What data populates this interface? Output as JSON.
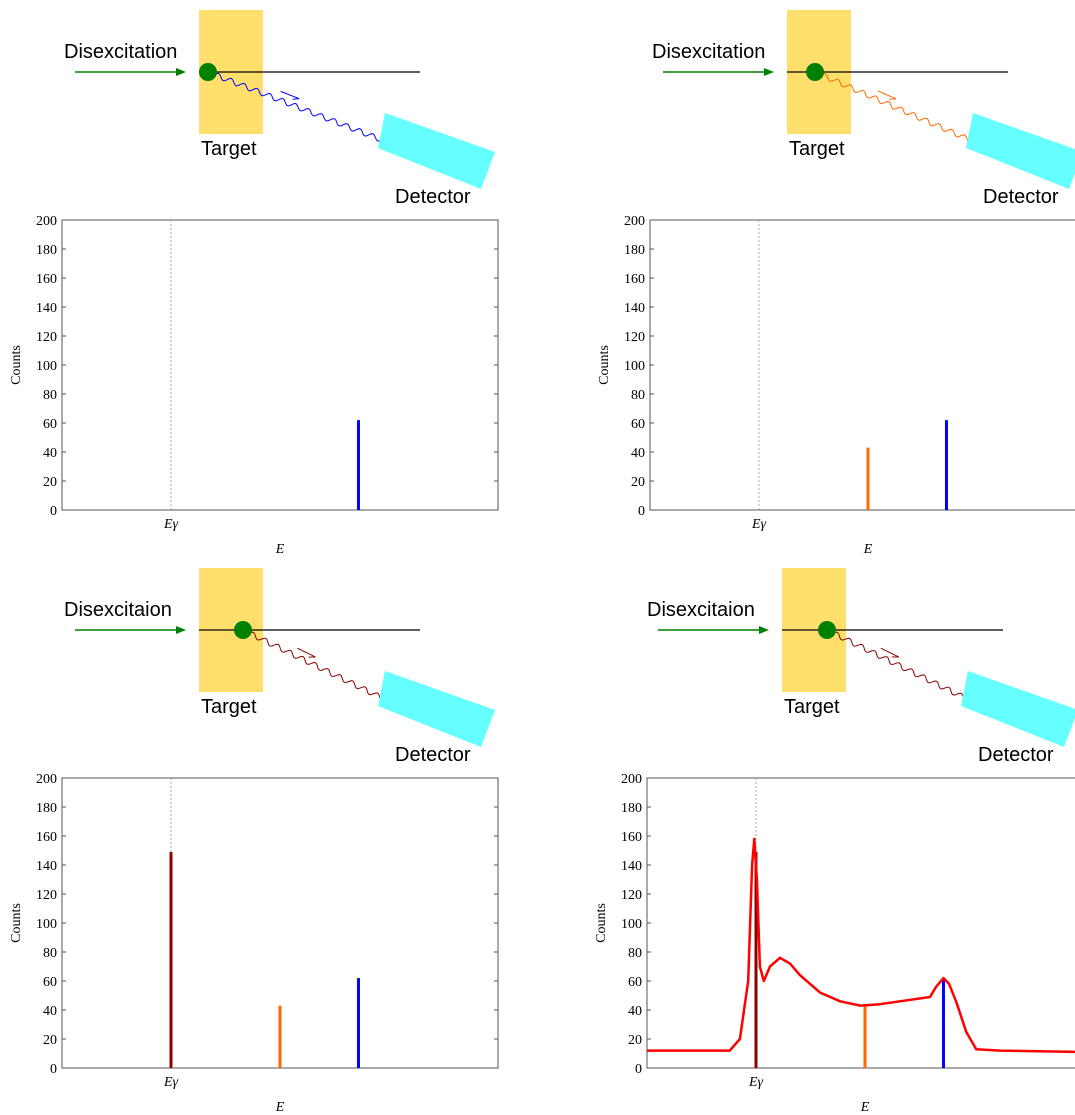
{
  "diagrams": [
    {
      "beam_label": "Disexcitation",
      "target_label": "Target",
      "detector_label": "Detector",
      "photon_color": "#0000ff"
    },
    {
      "beam_label": "Disexcitation",
      "target_label": "Target",
      "detector_label": "Detector",
      "photon_color": "#ff6a00"
    },
    {
      "beam_label": "Disexcitaion",
      "target_label": "Target",
      "detector_label": "Detector",
      "photon_color": "#8b0000"
    },
    {
      "beam_label": "Disexcitaion",
      "target_label": "Target",
      "detector_label": "Detector",
      "photon_color": "#8b0000"
    }
  ],
  "chart_data": [
    {
      "type": "spectrum",
      "x_label": "E",
      "y_label": "Counts",
      "xlim": [
        0,
        100
      ],
      "ylim": [
        0,
        200
      ],
      "yticks": [
        0,
        20,
        40,
        60,
        80,
        100,
        120,
        140,
        160,
        180,
        200
      ],
      "xticks": [
        {
          "value": 25,
          "label": "Eγ"
        }
      ],
      "xgrid": true,
      "series": [
        {
          "style": "spike",
          "color": "#0000ff",
          "x": [
            68
          ],
          "values": [
            62
          ]
        }
      ]
    },
    {
      "type": "spectrum",
      "x_label": "E",
      "y_label": "Counts",
      "xlim": [
        0,
        100
      ],
      "ylim": [
        0,
        200
      ],
      "yticks": [
        0,
        20,
        40,
        60,
        80,
        100,
        120,
        140,
        160,
        180,
        200
      ],
      "xticks": [
        {
          "value": 25,
          "label": "Eγ"
        }
      ],
      "xgrid": true,
      "series": [
        {
          "style": "spike",
          "color": "#ff6a00",
          "x": [
            50
          ],
          "values": [
            43
          ]
        },
        {
          "style": "spike",
          "color": "#0000ff",
          "x": [
            68
          ],
          "values": [
            62
          ]
        }
      ]
    },
    {
      "type": "spectrum",
      "x_label": "E",
      "y_label": "Counts",
      "xlim": [
        0,
        100
      ],
      "ylim": [
        0,
        200
      ],
      "yticks": [
        0,
        20,
        40,
        60,
        80,
        100,
        120,
        140,
        160,
        180,
        200
      ],
      "xticks": [
        {
          "value": 25,
          "label": "Eγ"
        }
      ],
      "xgrid": true,
      "series": [
        {
          "style": "spike",
          "color": "#8b0000",
          "x": [
            25
          ],
          "values": [
            149
          ]
        },
        {
          "style": "spike",
          "color": "#ff6a00",
          "x": [
            50
          ],
          "values": [
            43
          ]
        },
        {
          "style": "spike",
          "color": "#0000ff",
          "x": [
            68
          ],
          "values": [
            62
          ]
        }
      ]
    },
    {
      "type": "spectrum",
      "x_label": "E",
      "y_label": "Counts",
      "xlim": [
        0,
        100
      ],
      "ylim": [
        0,
        200
      ],
      "yticks": [
        0,
        20,
        40,
        60,
        80,
        100,
        120,
        140,
        160,
        180,
        200
      ],
      "xticks": [
        {
          "value": 25,
          "label": "Eγ"
        }
      ],
      "xgrid": true,
      "series": [
        {
          "style": "spike",
          "color": "#8b0000",
          "x": [
            25
          ],
          "values": [
            149
          ]
        },
        {
          "style": "spike",
          "color": "#ff6a00",
          "x": [
            50
          ],
          "values": [
            43
          ]
        },
        {
          "style": "spike",
          "color": "#0000ff",
          "x": [
            68
          ],
          "values": [
            62
          ]
        },
        {
          "style": "line",
          "color": "#ff0000",
          "x": [
            0,
            19,
            21.3,
            23.2,
            24.1,
            24.6,
            25.2,
            25.9,
            26.8,
            28.2,
            30.5,
            32.8,
            35.1,
            39.7,
            44.3,
            48.9,
            53.4,
            58,
            64.9,
            66.3,
            68,
            69.3,
            71,
            73.2,
            75.5,
            81,
            100
          ],
          "values": [
            12,
            12,
            20,
            60,
            140,
            158,
            130,
            70,
            60,
            70,
            76,
            72,
            64,
            52,
            46,
            43,
            44,
            46,
            49,
            56,
            62,
            58,
            45,
            25,
            13,
            12,
            11
          ]
        }
      ]
    }
  ]
}
